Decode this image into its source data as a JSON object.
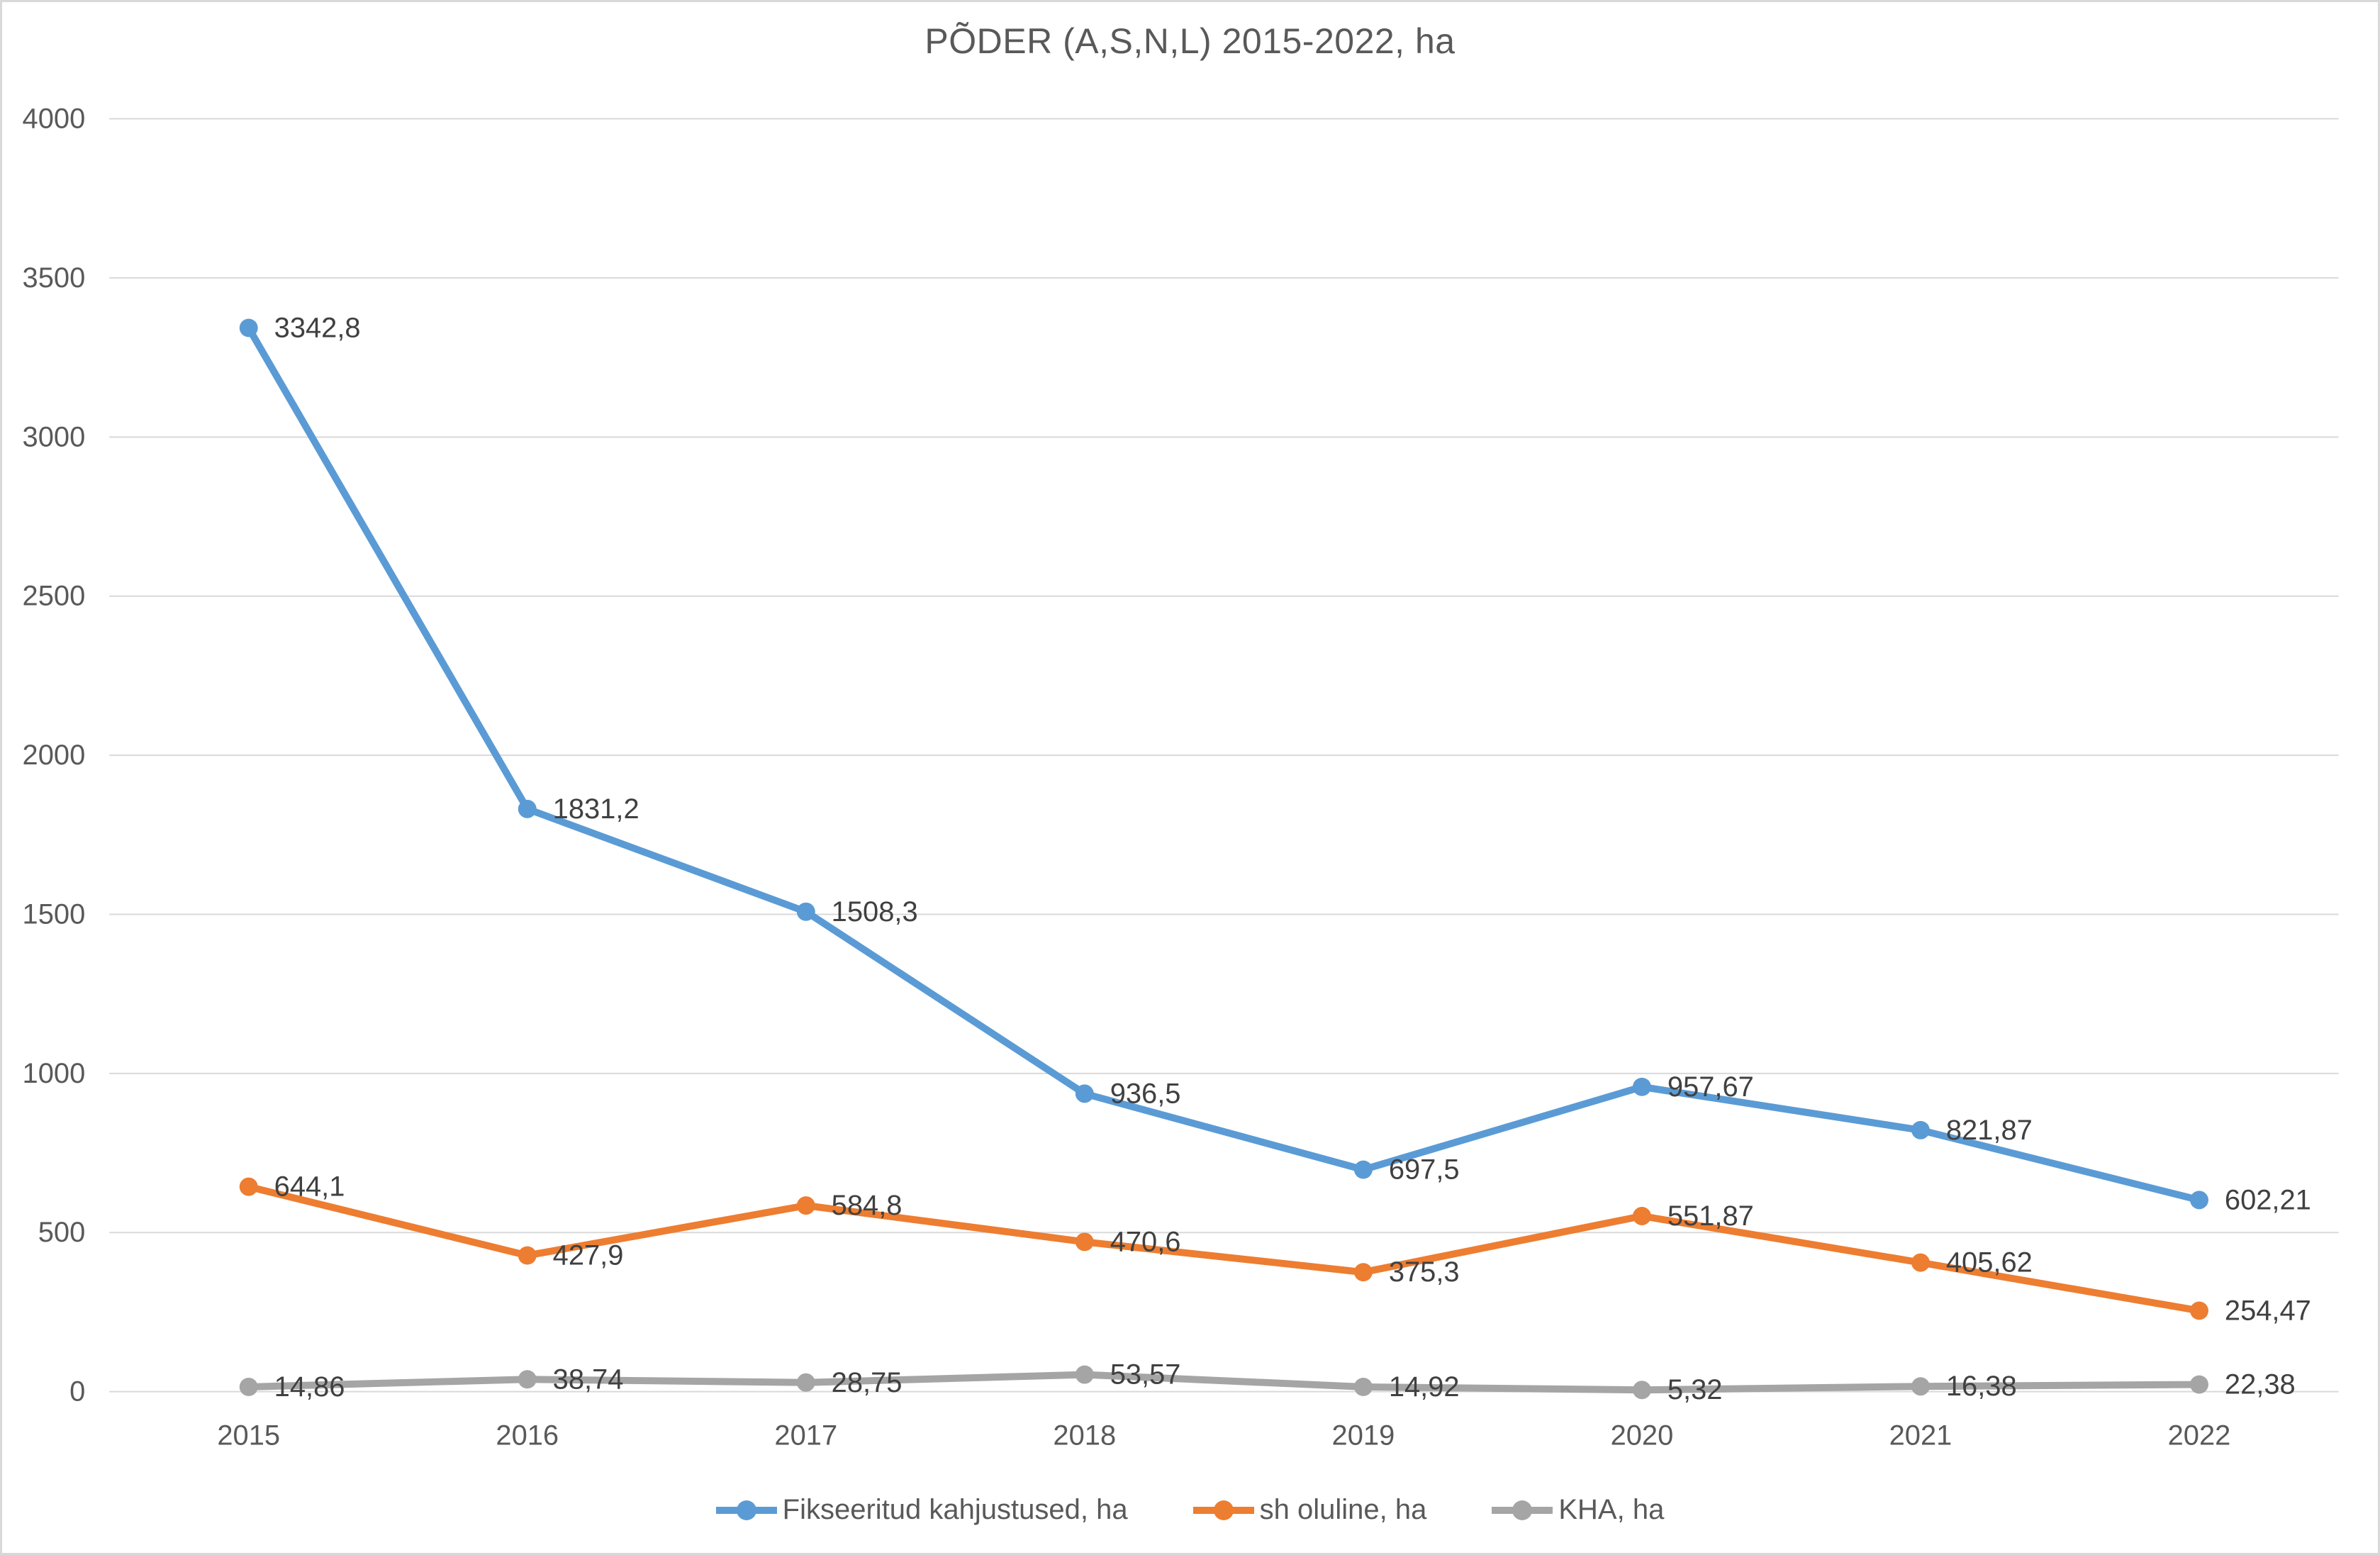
{
  "title": "PÕDER (A,S,N,L) 2015-2022, ha",
  "colors": {
    "background": "#FFFFFF",
    "frame_border": "#D9D9D9",
    "gridline": "#D9D9D9",
    "axis_text": "#595959",
    "data_label_text": "#404040",
    "title_text": "#595959",
    "series_blue": "#5B9BD5",
    "series_orange": "#ED7D31",
    "series_gray": "#A5A5A5"
  },
  "chart_data": {
    "type": "line",
    "title": "PÕDER (A,S,N,L) 2015-2022, ha",
    "xlabel": "",
    "ylabel": "",
    "categories": [
      "2015",
      "2016",
      "2017",
      "2018",
      "2019",
      "2020",
      "2021",
      "2022"
    ],
    "series": [
      {
        "name": "Fikseeritud kahjustused, ha",
        "color": "#5B9BD5",
        "values": [
          3342.8,
          1831.2,
          1508.3,
          936.5,
          697.5,
          957.67,
          821.87,
          602.21
        ],
        "labels": [
          "3342,8",
          "1831,2",
          "1508,3",
          "936,5",
          "697,5",
          "957,67",
          "821,87",
          "602,21"
        ]
      },
      {
        "name": "sh oluline, ha",
        "color": "#ED7D31",
        "values": [
          644.1,
          427.9,
          584.8,
          470.6,
          375.3,
          551.87,
          405.62,
          254.47
        ],
        "labels": [
          "644,1",
          "427,9",
          "584,8",
          "470,6",
          "375,3",
          "551,87",
          "405,62",
          "254,47"
        ]
      },
      {
        "name": "KHA, ha",
        "color": "#A5A5A5",
        "values": [
          14.86,
          38.74,
          28.75,
          53.57,
          14.92,
          5.32,
          16.38,
          22.38
        ],
        "labels": [
          "14,86",
          "38,74",
          "28,75",
          "53,57",
          "14,92",
          "5,32",
          "16,38",
          "22,38"
        ]
      }
    ],
    "y_ticks": [
      0,
      500,
      1000,
      1500,
      2000,
      2500,
      3000,
      3500,
      4000
    ],
    "ylim": [
      0,
      4000
    ],
    "grid": true,
    "grid_orientation": "horizontal",
    "legend_position": "bottom",
    "data_labels_shown": true,
    "decimal_separator": ","
  }
}
